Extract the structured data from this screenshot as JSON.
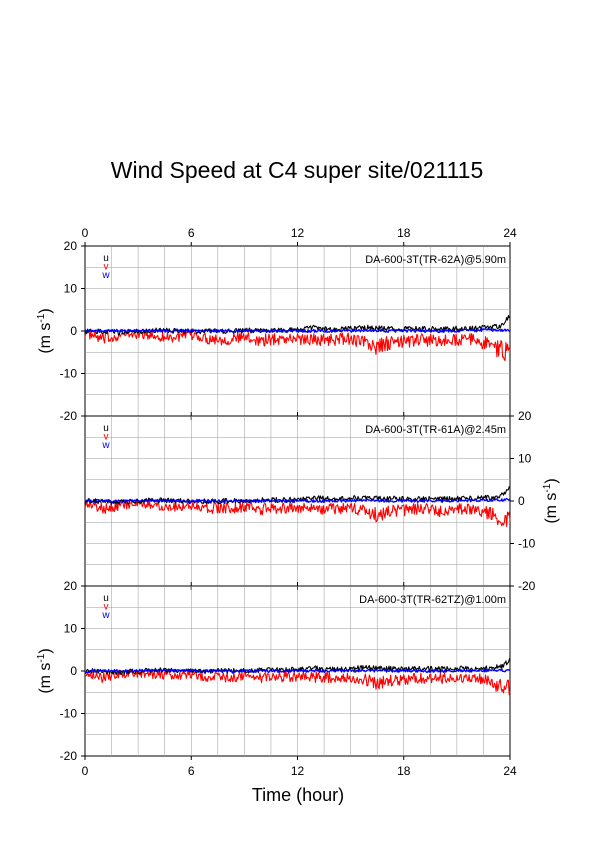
{
  "figure": {
    "title": "Wind Speed at C4 super site/021115",
    "xlabel": "Time (hour)",
    "ylabel_main": "(m s",
    "ylabel_sup": "-1",
    "ylabel_close": ")"
  },
  "chart_data": {
    "type": "line",
    "title": "Wind Speed at C4 super site/021115",
    "xlabel": "Time (hour)",
    "ylabel": "(m s-1)",
    "xlim": [
      0,
      24
    ],
    "ylim": [
      -20,
      20
    ],
    "xticks": [
      0,
      6,
      12,
      18,
      24
    ],
    "yticks": [
      -20,
      -10,
      0,
      10,
      20
    ],
    "grid": true,
    "legend": {
      "position": "top-left",
      "entries": [
        "u",
        "v",
        "w"
      ]
    },
    "colors": {
      "u": "#000000",
      "v": "#ff0000",
      "w": "#0000ff"
    },
    "panels": [
      {
        "instrument": "DA-600-3T(TR-62A)@5.90m",
        "series": [
          {
            "name": "u",
            "color": "#000000",
            "x": [
              0,
              2,
              4,
              6,
              8,
              10,
              12,
              13,
              14,
              16,
              17,
              18,
              20,
              22,
              23,
              23.5,
              24
            ],
            "y": [
              0,
              -0.3,
              0.2,
              -0.1,
              0,
              0.2,
              0.3,
              0.8,
              0.4,
              0.8,
              0.6,
              0.5,
              0.5,
              0.6,
              0.9,
              1.2,
              3.5
            ]
          },
          {
            "name": "v",
            "color": "#ff0000",
            "x": [
              0,
              1,
              2,
              3,
              4,
              5,
              6,
              7,
              8,
              9,
              10,
              11,
              12,
              13,
              14,
              15,
              16,
              16.5,
              17,
              18,
              19,
              20,
              21,
              22,
              23,
              23.5,
              24
            ],
            "y": [
              -0.5,
              -2.0,
              -1.0,
              -0.8,
              -1.2,
              -1.5,
              -1.0,
              -1.8,
              -2.0,
              -1.5,
              -2.2,
              -1.8,
              -1.8,
              -2.0,
              -2.0,
              -1.8,
              -3.0,
              -4.0,
              -3.0,
              -2.5,
              -2.0,
              -2.5,
              -2.0,
              -2.0,
              -3.5,
              -4.5,
              -5.0
            ]
          },
          {
            "name": "w",
            "color": "#0000ff",
            "x": [
              0,
              4,
              8,
              12,
              16,
              20,
              24
            ],
            "y": [
              0,
              0.1,
              0,
              0,
              0.1,
              0,
              0.3
            ]
          }
        ]
      },
      {
        "instrument": "DA-600-3T(TR-61A)@2.45m",
        "series": [
          {
            "name": "u",
            "color": "#000000",
            "x": [
              0,
              2,
              4,
              6,
              8,
              10,
              12,
              13,
              14,
              16,
              17,
              18,
              20,
              22,
              23,
              23.5,
              24
            ],
            "y": [
              0,
              -0.3,
              0.2,
              -0.1,
              0,
              0.2,
              0.3,
              0.8,
              0.4,
              0.8,
              0.6,
              0.5,
              0.5,
              0.6,
              0.9,
              1.2,
              3.5
            ]
          },
          {
            "name": "v",
            "color": "#ff0000",
            "x": [
              0,
              1,
              2,
              3,
              4,
              5,
              6,
              7,
              8,
              9,
              10,
              11,
              12,
              13,
              14,
              15,
              16,
              16.5,
              17,
              18,
              19,
              20,
              21,
              22,
              23,
              23.5,
              24
            ],
            "y": [
              -0.5,
              -1.8,
              -1.0,
              -0.8,
              -1.0,
              -1.3,
              -1.0,
              -1.6,
              -1.8,
              -1.4,
              -2.0,
              -1.6,
              -1.6,
              -1.8,
              -1.8,
              -1.6,
              -2.6,
              -3.5,
              -2.8,
              -2.3,
              -1.8,
              -2.2,
              -1.8,
              -1.8,
              -3.2,
              -4.0,
              -4.5
            ]
          },
          {
            "name": "w",
            "color": "#0000ff",
            "x": [
              0,
              4,
              8,
              12,
              16,
              20,
              24
            ],
            "y": [
              0,
              0.1,
              0,
              0,
              0.1,
              0,
              0.3
            ]
          }
        ]
      },
      {
        "instrument": "DA-600-3T(TR-62TZ)@1.00m",
        "series": [
          {
            "name": "u",
            "color": "#000000",
            "x": [
              0,
              2,
              4,
              6,
              8,
              10,
              12,
              13,
              14,
              16,
              17,
              18,
              20,
              22,
              23,
              23.5,
              24
            ],
            "y": [
              0,
              -0.3,
              0.2,
              -0.1,
              0,
              0.2,
              0.3,
              0.6,
              0.4,
              0.8,
              0.6,
              0.5,
              0.5,
              0.6,
              0.9,
              1.0,
              2.5
            ]
          },
          {
            "name": "v",
            "color": "#ff0000",
            "x": [
              0,
              1,
              2,
              3,
              4,
              5,
              6,
              7,
              8,
              9,
              10,
              11,
              12,
              13,
              14,
              15,
              16,
              16.5,
              17,
              18,
              19,
              20,
              21,
              22,
              23,
              23.5,
              24
            ],
            "y": [
              -0.3,
              -1.5,
              -0.8,
              -0.6,
              -0.8,
              -1.0,
              -0.8,
              -1.4,
              -1.5,
              -1.2,
              -1.6,
              -1.4,
              -1.4,
              -1.5,
              -1.5,
              -1.4,
              -2.2,
              -3.0,
              -2.4,
              -2.0,
              -1.6,
              -1.8,
              -1.5,
              -1.5,
              -2.8,
              -3.5,
              -4.0
            ]
          },
          {
            "name": "w",
            "color": "#0000ff",
            "x": [
              0,
              4,
              8,
              12,
              16,
              20,
              24
            ],
            "y": [
              0,
              0.1,
              0,
              0,
              0.1,
              0,
              0.2
            ]
          }
        ]
      }
    ]
  }
}
